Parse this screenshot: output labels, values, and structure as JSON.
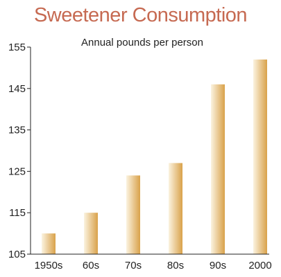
{
  "chart_data": {
    "type": "bar",
    "title": "Sweetener Consumption",
    "subtitle": "Annual pounds per person",
    "xlabel": "",
    "ylabel": "",
    "categories": [
      "1950s",
      "60s",
      "70s",
      "80s",
      "90s",
      "2000"
    ],
    "values": [
      110,
      115,
      124,
      127,
      146,
      152
    ],
    "ylim": [
      105,
      155
    ],
    "yticks": [
      "105",
      "115",
      "125",
      "135",
      "145",
      "155"
    ],
    "grid": false,
    "colors": {
      "title": "#c66a52",
      "bar_light": "#fbf3e0",
      "bar_dark": "#d9a24a",
      "axis": "#222222",
      "text": "#222222"
    }
  }
}
